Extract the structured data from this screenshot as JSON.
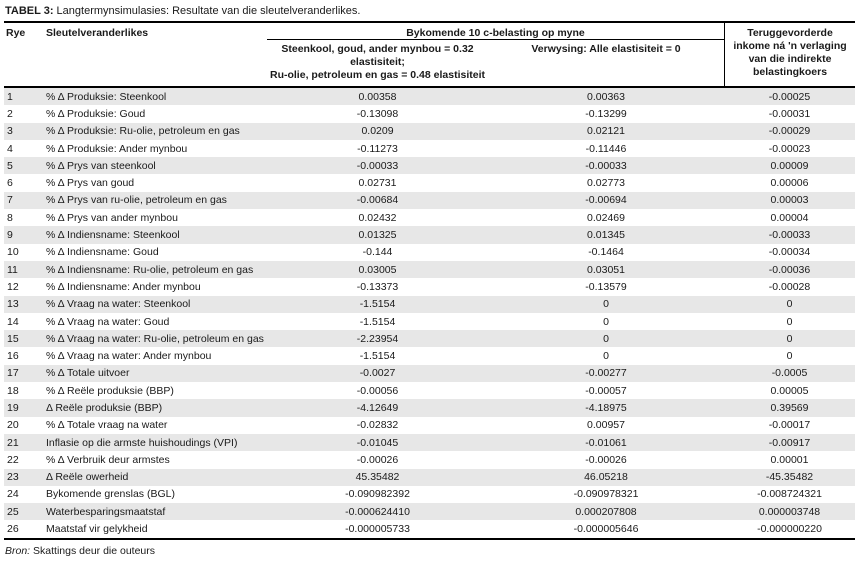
{
  "title": {
    "label": "TABEL 3:",
    "text": " Langtermynsimulasies: Resultate van die sleutelveranderlikes."
  },
  "header": {
    "row_col": "Rye",
    "variable_col": "Sleutelveranderlikes",
    "group": "Bykomende 10 c-belasting op myne",
    "scenario_col": "Steenkool, goud, ander mynbou = 0.32\nelastisiteit;\nRu-olie, petroleum en gas = 0.48 elastisiteit",
    "reference_col": "Verwysing: Alle elastisiteit = 0",
    "recovered_col": "Teruggevorderde\ninkome ná 'n verlaging\nvan die indirekte\nbelastingkoers"
  },
  "table": {
    "rows": [
      {
        "no": "1",
        "label": "% Δ Produksie: Steenkool",
        "scenario": "0.00358",
        "reference": "0.00363",
        "recovered": "-0.00025"
      },
      {
        "no": "2",
        "label": "% Δ Produksie: Goud",
        "scenario": "-0.13098",
        "reference": "-0.13299",
        "recovered": "-0.00031"
      },
      {
        "no": "3",
        "label": "% Δ Produksie: Ru-olie, petroleum en gas",
        "scenario": "0.0209",
        "reference": "0.02121",
        "recovered": "-0.00029"
      },
      {
        "no": "4",
        "label": "% Δ Produksie: Ander mynbou",
        "scenario": "-0.11273",
        "reference": "-0.11446",
        "recovered": "-0.00023"
      },
      {
        "no": "5",
        "label": "% Δ Prys van steenkool",
        "scenario": "-0.00033",
        "reference": "-0.00033",
        "recovered": "0.00009"
      },
      {
        "no": "6",
        "label": "% Δ Prys van goud",
        "scenario": "0.02731",
        "reference": "0.02773",
        "recovered": "0.00006"
      },
      {
        "no": "7",
        "label": "% Δ Prys van ru-olie, petroleum en gas",
        "scenario": "-0.00684",
        "reference": "-0.00694",
        "recovered": "0.00003"
      },
      {
        "no": "8",
        "label": "% Δ Prys van ander mynbou",
        "scenario": "0.02432",
        "reference": "0.02469",
        "recovered": "0.00004"
      },
      {
        "no": "9",
        "label": "% Δ Indiensname: Steenkool",
        "scenario": "0.01325",
        "reference": "0.01345",
        "recovered": "-0.00033"
      },
      {
        "no": "10",
        "label": "% Δ Indiensname: Goud",
        "scenario": "-0.144",
        "reference": "-0.1464",
        "recovered": "-0.00034"
      },
      {
        "no": "11",
        "label": "% Δ Indiensname: Ru-olie, petroleum en gas",
        "scenario": "0.03005",
        "reference": "0.03051",
        "recovered": "-0.00036"
      },
      {
        "no": "12",
        "label": "% Δ Indiensname: Ander mynbou",
        "scenario": "-0.13373",
        "reference": "-0.13579",
        "recovered": "-0.00028"
      },
      {
        "no": "13",
        "label": "% Δ Vraag na water: Steenkool",
        "scenario": "-1.5154",
        "reference": "0",
        "recovered": "0"
      },
      {
        "no": "14",
        "label": "% Δ Vraag na water: Goud",
        "scenario": "-1.5154",
        "reference": "0",
        "recovered": "0"
      },
      {
        "no": "15",
        "label": "% Δ Vraag na water: Ru-olie, petroleum en gas",
        "scenario": "-2.23954",
        "reference": "0",
        "recovered": "0"
      },
      {
        "no": "16",
        "label": "% Δ Vraag na water: Ander mynbou",
        "scenario": "-1.5154",
        "reference": "0",
        "recovered": "0"
      },
      {
        "no": "17",
        "label": "% Δ Totale uitvoer",
        "scenario": "-0.0027",
        "reference": "-0.00277",
        "recovered": "-0.0005"
      },
      {
        "no": "18",
        "label": "% Δ Reële produksie (BBP)",
        "scenario": "-0.00056",
        "reference": "-0.00057",
        "recovered": "0.00005"
      },
      {
        "no": "19",
        "label": "Δ Reële produksie (BBP)",
        "scenario": "-4.12649",
        "reference": "-4.18975",
        "recovered": "0.39569"
      },
      {
        "no": "20",
        "label": "% Δ Totale vraag na water",
        "scenario": "-0.02832",
        "reference": "0.00957",
        "recovered": "-0.00017"
      },
      {
        "no": "21",
        "label": "Inflasie op die armste huishoudings (VPI)",
        "scenario": "-0.01045",
        "reference": "-0.01061",
        "recovered": "-0.00917"
      },
      {
        "no": "22",
        "label": "% Δ Verbruik deur armstes",
        "scenario": "-0.00026",
        "reference": "-0.00026",
        "recovered": "0.00001"
      },
      {
        "no": "23",
        "label": "Δ Reële owerheid",
        "scenario": "45.35482",
        "reference": "46.05218",
        "recovered": "-45.35482"
      },
      {
        "no": "24",
        "label": "Bykomende grenslas (BGL)",
        "scenario": "-0.090982392",
        "reference": "-0.090978321",
        "recovered": "-0.008724321"
      },
      {
        "no": "25",
        "label": "Waterbesparingsmaatstaf",
        "scenario": "-0.000624410",
        "reference": "0.000207808",
        "recovered": "0.000003748"
      },
      {
        "no": "26",
        "label": "Maatstaf vir gelykheid",
        "scenario": "-0.000005733",
        "reference": "-0.000005646",
        "recovered": "-0.000000220"
      }
    ]
  },
  "footer": {
    "source_label": "Bron:",
    "source_text": " Skattings deur die outeurs"
  },
  "colors": {
    "stripe": "#e7e7e7",
    "rule": "#000000",
    "text": "#1a1a1a"
  }
}
